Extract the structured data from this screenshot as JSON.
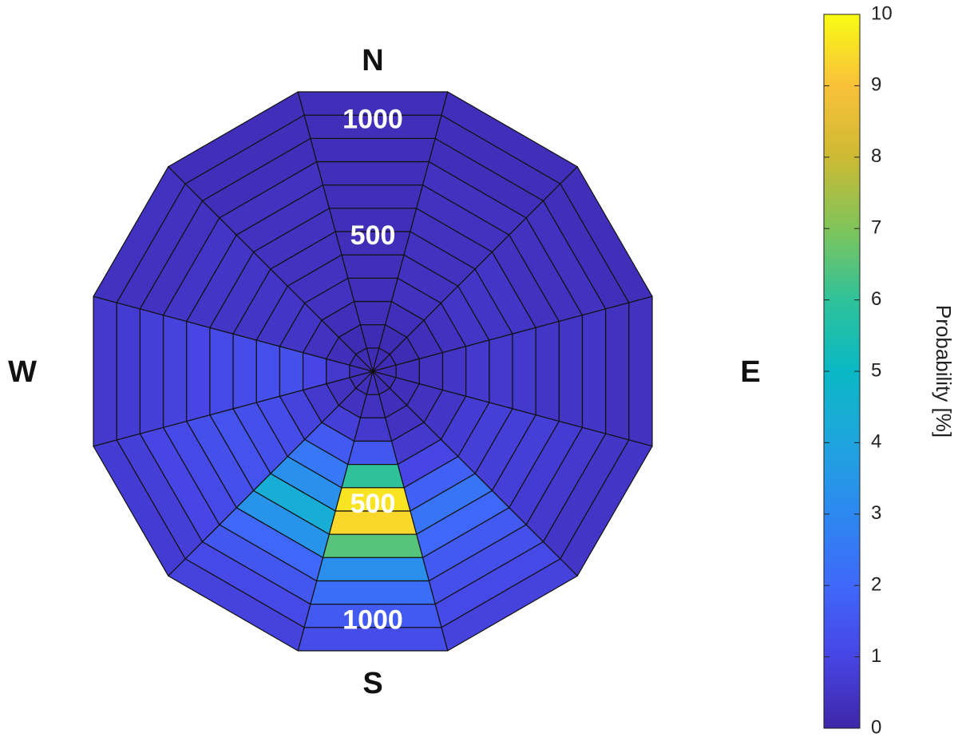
{
  "chart_data": {
    "type": "polar_heatmap",
    "compass": [
      "N",
      "E",
      "S",
      "W"
    ],
    "theta": [
      0,
      30,
      60,
      90,
      120,
      150,
      180,
      210,
      240,
      270,
      300,
      330
    ],
    "r_edges": [
      0,
      100,
      200,
      300,
      400,
      500,
      600,
      700,
      800,
      900,
      1000,
      1100,
      1200
    ],
    "rticks": [
      500,
      1000
    ],
    "values": [
      [
        0.2,
        0.2,
        0.3,
        0.3,
        0.3,
        0.3,
        0.3,
        0.3,
        0.3,
        0.3,
        0.3,
        0.3
      ],
      [
        0.2,
        0.2,
        0.3,
        0.4,
        0.4,
        0.4,
        0.4,
        0.4,
        0.4,
        0.3,
        0.3,
        0.3
      ],
      [
        0.2,
        0.2,
        0.3,
        0.4,
        0.5,
        0.5,
        0.5,
        0.4,
        0.4,
        0.4,
        0.3,
        0.3
      ],
      [
        0.2,
        0.3,
        0.4,
        0.5,
        0.6,
        0.6,
        0.6,
        0.5,
        0.5,
        0.5,
        0.4,
        0.4
      ],
      [
        0.2,
        0.3,
        0.4,
        0.5,
        0.7,
        0.8,
        0.8,
        0.8,
        0.7,
        0.6,
        0.5,
        0.5
      ],
      [
        0.2,
        0.3,
        0.4,
        0.6,
        1.0,
        1.8,
        2.4,
        2.0,
        1.6,
        1.3,
        1.1,
        0.9
      ],
      [
        0.3,
        0.4,
        0.6,
        1.5,
        6.0,
        9.6,
        9.4,
        6.5,
        3.2,
        2.2,
        1.6,
        1.2
      ],
      [
        0.3,
        0.4,
        0.8,
        1.6,
        2.5,
        3.3,
        4.4,
        3.4,
        2.0,
        1.5,
        1.1,
        0.9
      ],
      [
        0.3,
        0.4,
        0.6,
        0.9,
        1.2,
        1.3,
        1.4,
        1.3,
        1.1,
        1.0,
        0.8,
        0.7
      ],
      [
        0.3,
        0.6,
        1.0,
        1.3,
        1.3,
        1.2,
        1.1,
        1.0,
        0.9,
        0.8,
        0.7,
        0.6
      ],
      [
        0.2,
        0.3,
        0.4,
        0.5,
        0.5,
        0.5,
        0.5,
        0.5,
        0.5,
        0.4,
        0.4,
        0.4
      ],
      [
        0.2,
        0.2,
        0.3,
        0.4,
        0.4,
        0.4,
        0.4,
        0.4,
        0.4,
        0.3,
        0.3,
        0.3
      ]
    ],
    "clim": [
      0,
      10
    ],
    "cticks": [
      0,
      1,
      2,
      3,
      4,
      5,
      6,
      7,
      8,
      9,
      10
    ],
    "colormap": [
      "#3e26a8",
      "#4745e4",
      "#3f68fa",
      "#2d88f0",
      "#1fa5de",
      "#0ab8c4",
      "#2fc29a",
      "#80c45a",
      "#cdba33",
      "#f9c13a",
      "#f9fb15"
    ],
    "colorbar_label": "Probability [%]"
  }
}
